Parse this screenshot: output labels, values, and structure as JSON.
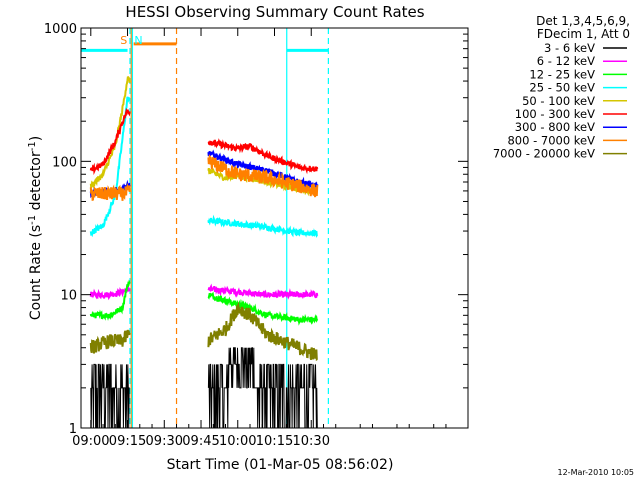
{
  "chart_data": {
    "type": "line",
    "title": "HESSI Observing Summary Count Rates",
    "xlabel": "Start Time (01-Mar-05 08:56:02)",
    "ylabel_main": "Count Rate (s",
    "ylabel_sup1": "-1",
    "ylabel_mid": " detector",
    "ylabel_sup2": "-1",
    "ylabel_end": ")",
    "y_scale": "log",
    "xlim": [
      536,
      694
    ],
    "ylim": [
      1,
      1000
    ],
    "x_ticks": [
      {
        "value": 540,
        "label": "09:00"
      },
      {
        "value": 555,
        "label": "09:15"
      },
      {
        "value": 570,
        "label": "09:30"
      },
      {
        "value": 585,
        "label": "09:45"
      },
      {
        "value": 600,
        "label": "10:00"
      },
      {
        "value": 615,
        "label": "10:15"
      },
      {
        "value": 630,
        "label": "10:30"
      }
    ],
    "y_ticks": [
      {
        "value": 1,
        "label": "1"
      },
      {
        "value": 10,
        "label": "10"
      },
      {
        "value": 100,
        "label": "100"
      },
      {
        "value": 1000,
        "label": "1000"
      }
    ],
    "legend_header": [
      "Det 1,3,4,5,6,9,",
      "FDecim 1, Att 0"
    ],
    "series": [
      {
        "name": "3 - 6 keV",
        "color": "#000000",
        "x": [
          540,
          548,
          553,
          555,
          588,
          600,
          610,
          625,
          632
        ],
        "y": [
          2,
          2,
          3,
          3,
          2.5,
          4,
          2.5,
          2,
          2
        ]
      },
      {
        "name": "6 - 12 keV",
        "color": "#ff00ff",
        "x": [
          540,
          548,
          553,
          555,
          588,
          600,
          610,
          625,
          632
        ],
        "y": [
          10,
          10,
          10.5,
          11,
          11,
          10.5,
          10,
          10,
          10
        ]
      },
      {
        "name": "12 - 25 keV",
        "color": "#00ff00",
        "x": [
          540,
          548,
          553,
          555,
          588,
          595,
          605,
          612,
          625,
          632
        ],
        "y": [
          7,
          7,
          8,
          12,
          10,
          9,
          8,
          7,
          6.5,
          6.5
        ]
      },
      {
        "name": "25 - 50 keV",
        "color": "#00ffff",
        "x": [
          540,
          545,
          550,
          553,
          555,
          588,
          600,
          612,
          625,
          632
        ],
        "y": [
          29,
          33,
          55,
          150,
          300,
          36,
          34,
          32,
          29,
          29
        ]
      },
      {
        "name": "50 - 100 keV",
        "color": "#d4c600",
        "x": [
          540,
          545,
          550,
          553,
          555,
          588,
          595,
          600,
          605,
          612,
          625,
          632
        ],
        "y": [
          65,
          80,
          130,
          250,
          420,
          85,
          75,
          78,
          75,
          70,
          62,
          60
        ]
      },
      {
        "name": "100 - 300 keV",
        "color": "#ff0000",
        "x": [
          540,
          545,
          550,
          553,
          555,
          588,
          600,
          605,
          612,
          625,
          632
        ],
        "y": [
          85,
          95,
          140,
          200,
          240,
          140,
          125,
          130,
          110,
          90,
          88
        ]
      },
      {
        "name": "300 - 800 keV",
        "color": "#0000ff",
        "x": [
          540,
          548,
          553,
          555,
          588,
          600,
          612,
          625,
          632
        ],
        "y": [
          58,
          60,
          62,
          65,
          115,
          95,
          85,
          70,
          65
        ]
      },
      {
        "name": "800 - 7000 keV",
        "color": "#ff8000",
        "x": [
          540,
          548,
          553,
          555,
          588,
          600,
          612,
          625,
          632
        ],
        "y": [
          57,
          57,
          57,
          58,
          100,
          80,
          75,
          65,
          60
        ]
      },
      {
        "name": "7000 - 20000 keV",
        "color": "#808000",
        "x": [
          540,
          548,
          553,
          555,
          588,
          595,
          600,
          605,
          612,
          625,
          632
        ],
        "y": [
          4,
          4.5,
          4.5,
          5,
          4.5,
          5.5,
          8,
          7,
          5,
          4,
          3.5
        ]
      }
    ],
    "vertical_markers": [
      {
        "x": 556.5,
        "color": "#ff8000",
        "style": "solid",
        "text": "S"
      },
      {
        "x": 557,
        "color": "#00ffff",
        "style": "solid",
        "text": "N"
      },
      {
        "x": 556,
        "color": "#00ffff",
        "style": "dashed"
      },
      {
        "x": 575,
        "color": "#ff8000",
        "style": "dashed"
      },
      {
        "x": 620,
        "color": "#00ffff",
        "style": "solid"
      },
      {
        "x": 637,
        "color": "#00ffff",
        "style": "dashed"
      }
    ],
    "top_bars": [
      {
        "x0": 536,
        "x1": 555,
        "y": 680,
        "color": "#00ffff"
      },
      {
        "x0": 557.5,
        "x1": 575,
        "y": 760,
        "color": "#ff8000"
      },
      {
        "x0": 620,
        "x1": 637,
        "y": 680,
        "color": "#00ffff"
      }
    ],
    "footer": "12-Mar-2010 10:05"
  }
}
